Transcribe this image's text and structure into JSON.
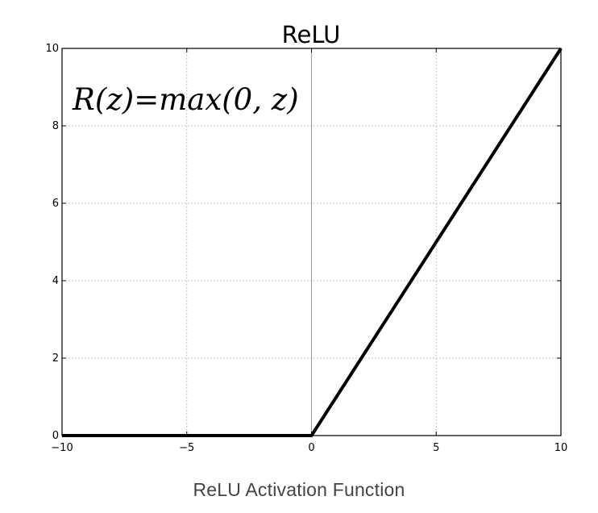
{
  "chart_data": {
    "type": "line",
    "title": "ReLU",
    "xlabel": "",
    "ylabel": "",
    "xlim": [
      -10,
      10
    ],
    "ylim": [
      0,
      10
    ],
    "xticks": [
      -10,
      -5,
      0,
      5,
      10
    ],
    "xtick_labels": [
      "−10",
      "−5",
      "0",
      "5",
      "10"
    ],
    "yticks": [
      0,
      2,
      4,
      6,
      8,
      10
    ],
    "ytick_labels": [
      "0",
      "2",
      "4",
      "6",
      "8",
      "10"
    ],
    "grid": true,
    "series": [
      {
        "x": [
          -10,
          0,
          10
        ],
        "y": [
          0,
          0,
          10
        ],
        "color": "#000000"
      }
    ],
    "annotations": [
      {
        "text": "R(z)=max(0,  z)",
        "position": "top-left"
      }
    ]
  },
  "caption": "ReLU Activation Function"
}
